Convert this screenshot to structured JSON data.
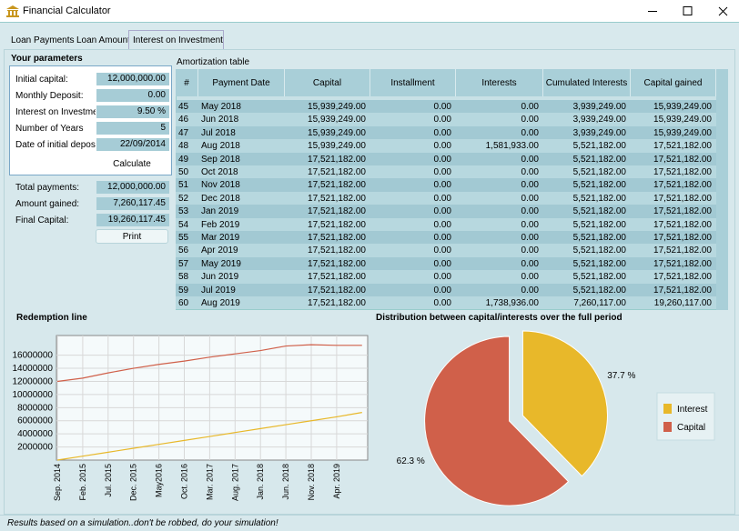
{
  "window": {
    "title": "Financial Calculator"
  },
  "tabs": [
    "Loan Payments",
    "Loan Amount",
    "Interest on Investment"
  ],
  "parameters": {
    "title": "Your parameters",
    "fields": [
      {
        "label": "Initial capital:",
        "value": "12,000,000.00"
      },
      {
        "label": "Monthly Deposit:",
        "value": "0.00"
      },
      {
        "label": "Interest on Investmer",
        "value": "9.50 %"
      },
      {
        "label": "Number of Years",
        "value": "5"
      },
      {
        "label": "Date of initial deposit:",
        "value": "22/09/2014"
      }
    ],
    "button": "Calculate"
  },
  "results": {
    "fields": [
      {
        "label": "Total payments:",
        "value": "12,000,000.00"
      },
      {
        "label": "Amount gained:",
        "value": "7,260,117.45"
      },
      {
        "label": "Final Capital:",
        "value": "19,260,117.45"
      }
    ],
    "button": "Print"
  },
  "table": {
    "title": "Amortization table",
    "headers": [
      "#",
      "Payment Date",
      "Capital",
      "Installment",
      "Interests",
      "Cumulated Interests",
      "Capital gained"
    ],
    "rows": [
      [
        "45",
        "May 2018",
        "15,939,249.00",
        "0.00",
        "0.00",
        "3,939,249.00",
        "15,939,249.00"
      ],
      [
        "46",
        "Jun 2018",
        "15,939,249.00",
        "0.00",
        "0.00",
        "3,939,249.00",
        "15,939,249.00"
      ],
      [
        "47",
        "Jul 2018",
        "15,939,249.00",
        "0.00",
        "0.00",
        "3,939,249.00",
        "15,939,249.00"
      ],
      [
        "48",
        "Aug 2018",
        "15,939,249.00",
        "0.00",
        "1,581,933.00",
        "5,521,182.00",
        "17,521,182.00"
      ],
      [
        "49",
        "Sep 2018",
        "17,521,182.00",
        "0.00",
        "0.00",
        "5,521,182.00",
        "17,521,182.00"
      ],
      [
        "50",
        "Oct 2018",
        "17,521,182.00",
        "0.00",
        "0.00",
        "5,521,182.00",
        "17,521,182.00"
      ],
      [
        "51",
        "Nov 2018",
        "17,521,182.00",
        "0.00",
        "0.00",
        "5,521,182.00",
        "17,521,182.00"
      ],
      [
        "52",
        "Dec 2018",
        "17,521,182.00",
        "0.00",
        "0.00",
        "5,521,182.00",
        "17,521,182.00"
      ],
      [
        "53",
        "Jan 2019",
        "17,521,182.00",
        "0.00",
        "0.00",
        "5,521,182.00",
        "17,521,182.00"
      ],
      [
        "54",
        "Feb 2019",
        "17,521,182.00",
        "0.00",
        "0.00",
        "5,521,182.00",
        "17,521,182.00"
      ],
      [
        "55",
        "Mar 2019",
        "17,521,182.00",
        "0.00",
        "0.00",
        "5,521,182.00",
        "17,521,182.00"
      ],
      [
        "56",
        "Apr 2019",
        "17,521,182.00",
        "0.00",
        "0.00",
        "5,521,182.00",
        "17,521,182.00"
      ],
      [
        "57",
        "May 2019",
        "17,521,182.00",
        "0.00",
        "0.00",
        "5,521,182.00",
        "17,521,182.00"
      ],
      [
        "58",
        "Jun 2019",
        "17,521,182.00",
        "0.00",
        "0.00",
        "5,521,182.00",
        "17,521,182.00"
      ],
      [
        "59",
        "Jul 2019",
        "17,521,182.00",
        "0.00",
        "0.00",
        "5,521,182.00",
        "17,521,182.00"
      ],
      [
        "60",
        "Aug 2019",
        "17,521,182.00",
        "0.00",
        "1,738,936.00",
        "7,260,117.00",
        "19,260,117.00"
      ]
    ]
  },
  "chart_data": [
    {
      "type": "line",
      "title": "Redemption line",
      "categories": [
        "Sep. 2014",
        "Feb. 2015",
        "Jul. 2015",
        "Dec. 2015",
        "May2016",
        "Oct. 2016",
        "Mar. 2017",
        "Aug. 2017",
        "Jan. 2018",
        "Jun. 2018",
        "Nov. 2018",
        "Apr. 2019",
        null
      ],
      "series": [
        {
          "color": "#d0604a",
          "values": [
            12000000,
            12500000,
            13300000,
            14000000,
            14600000,
            15100000,
            15700000,
            16200000,
            16700000,
            17400000,
            17600000,
            17500000,
            17500000
          ]
        },
        {
          "color": "#e8b82a",
          "values": [
            0,
            600000,
            1200000,
            1800000,
            2400000,
            3000000,
            3600000,
            4200000,
            4800000,
            5400000,
            6000000,
            6600000,
            7260000
          ]
        }
      ],
      "ylim": [
        0,
        19000000
      ],
      "yticks": [
        2000000,
        4000000,
        6000000,
        8000000,
        10000000,
        12000000,
        14000000,
        16000000
      ],
      "grid": true
    },
    {
      "type": "pie",
      "title": "Distribution between capital/interests over the full period",
      "categories": [
        "Interest",
        "Capital"
      ],
      "values": [
        37.7,
        62.3
      ],
      "value_labels": [
        "37.7 %",
        "62.3 %"
      ],
      "colors": [
        "#e8b82a",
        "#d0604a"
      ],
      "legend": "right"
    }
  ],
  "footer": "Results based on a simulation..don't be robbed, do your simulation!"
}
